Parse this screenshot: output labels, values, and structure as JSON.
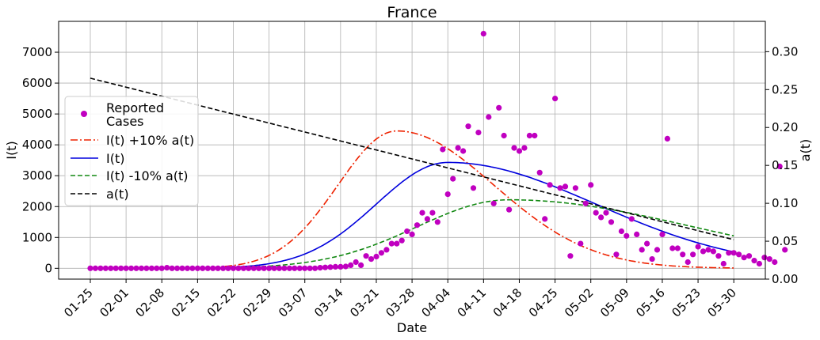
{
  "chart_data": {
    "type": "line",
    "title": "France",
    "xlabel": "Date",
    "ylabel": "I(t)",
    "y2label": "a(t)",
    "ylim": [
      -350,
      8000
    ],
    "y2lim": [
      0,
      0.34
    ],
    "x_tick_labels": [
      "01-25",
      "02-01",
      "02-08",
      "02-15",
      "02-22",
      "02-29",
      "03-07",
      "03-14",
      "03-21",
      "03-28",
      "04-04",
      "04-11",
      "04-18",
      "04-25",
      "05-02",
      "05-09",
      "05-16",
      "05-23",
      "05-30"
    ],
    "y_tick_values": [
      0,
      1000,
      2000,
      3000,
      4000,
      5000,
      6000,
      7000
    ],
    "y2_tick_labels": [
      "0.00",
      "0.05",
      "0.10",
      "0.15",
      "0.20",
      "0.25",
      "0.30"
    ],
    "grid": true,
    "legend_position": "left",
    "colors": {
      "reported": "#c000c0",
      "plus10": "#ee2200",
      "base": "#0000dd",
      "minus10": "#118811",
      "a": "#000000"
    },
    "legend": [
      {
        "label": "Reported",
        "label2": "Cases",
        "style": "dot",
        "color": "#c000c0"
      },
      {
        "label": "I(t) +10% a(t)",
        "style": "dashdot",
        "color": "#ee2200"
      },
      {
        "label": "I(t)",
        "style": "solid",
        "color": "#0000dd"
      },
      {
        "label": "I(t) -10% a(t)",
        "style": "dashed",
        "color": "#118811"
      },
      {
        "label": "a(t)",
        "style": "dashed",
        "color": "#000000"
      }
    ],
    "series": [
      {
        "name": "I(t) +10% a(t)",
        "axis": "left",
        "peak_day": 60,
        "peak": 4450,
        "width_before": 11.5,
        "width_after": 19,
        "start_day": 0,
        "end_day": 126
      },
      {
        "name": "I(t)",
        "axis": "left",
        "peak_day": 70,
        "peak": 3430,
        "width_before": 14,
        "width_after": 29,
        "start_day": 0,
        "end_day": 126
      },
      {
        "name": "I(t) -10% a(t)",
        "axis": "left",
        "peak_day": 82,
        "peak": 2220,
        "width_before": 18,
        "width_after": 36,
        "start_day": 0,
        "end_day": 126
      },
      {
        "name": "a(t)",
        "axis": "right",
        "x": [
          0,
          126
        ],
        "y": [
          0.265,
          0.052
        ]
      }
    ],
    "reported_cases": {
      "start_day": 0,
      "values": [
        0,
        0,
        0,
        0,
        0,
        0,
        0,
        0,
        0,
        0,
        0,
        0,
        0,
        0,
        0,
        20,
        0,
        0,
        0,
        0,
        0,
        0,
        0,
        0,
        0,
        0,
        0,
        0,
        0,
        0,
        0,
        0,
        0,
        0,
        0,
        0,
        0,
        0,
        0,
        0,
        0,
        0,
        0,
        0,
        0,
        20,
        30,
        40,
        50,
        50,
        60,
        100,
        200,
        100,
        400,
        300,
        380,
        500,
        600,
        800,
        800,
        900,
        1200,
        1100,
        1400,
        1800,
        1600,
        1800,
        1500,
        3850,
        2400,
        2900,
        3900,
        3800,
        4600,
        2600,
        4400,
        7600,
        4900,
        2100,
        5200,
        4300,
        1900,
        3900,
        3800,
        3900,
        4300,
        4300,
        3100,
        1600,
        2700,
        5500,
        2600,
        2650,
        400,
        2600,
        800,
        2100,
        2700,
        1800,
        1650,
        1800,
        1500,
        450,
        1200,
        1050,
        1600,
        1100,
        600,
        800,
        300,
        600,
        1100,
        4200,
        650,
        650,
        450,
        200,
        450,
        700,
        550,
        600,
        550,
        400,
        150,
        500,
        500,
        450,
        350,
        400,
        250,
        150,
        350,
        300,
        200,
        3300,
        600
      ]
    }
  }
}
